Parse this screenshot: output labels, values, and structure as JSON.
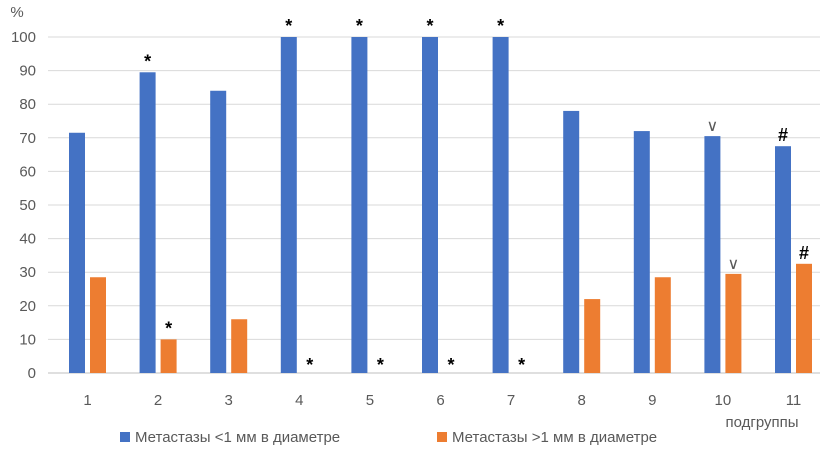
{
  "chart_data": {
    "type": "bar",
    "y_unit_label": "%",
    "x_axis_label": "подгруппы",
    "categories": [
      "1",
      "2",
      "3",
      "4",
      "5",
      "6",
      "7",
      "8",
      "9",
      "10",
      "11"
    ],
    "ylim": [
      0,
      100
    ],
    "yticks": [
      0,
      10,
      20,
      30,
      40,
      50,
      60,
      70,
      80,
      90,
      100
    ],
    "grid": true,
    "legend_position": "bottom",
    "series": [
      {
        "name": "Метастазы <1 мм в диаметре",
        "color": "#4472C4",
        "values": [
          71.5,
          89.5,
          84,
          100,
          100,
          100,
          100,
          78,
          72,
          70.5,
          67.5
        ],
        "markers": [
          "",
          "*",
          "",
          "*",
          "*",
          "*",
          "*",
          "",
          "",
          "V",
          "#"
        ]
      },
      {
        "name": "Метастазы >1 мм в диаметре",
        "color": "#ED7D31",
        "values": [
          28.5,
          10,
          16,
          0,
          0,
          0,
          0,
          22,
          28.5,
          29.5,
          32.5
        ],
        "markers": [
          "",
          "*",
          "",
          "*",
          "*",
          "*",
          "*",
          "",
          "",
          "V",
          "#"
        ]
      }
    ]
  }
}
